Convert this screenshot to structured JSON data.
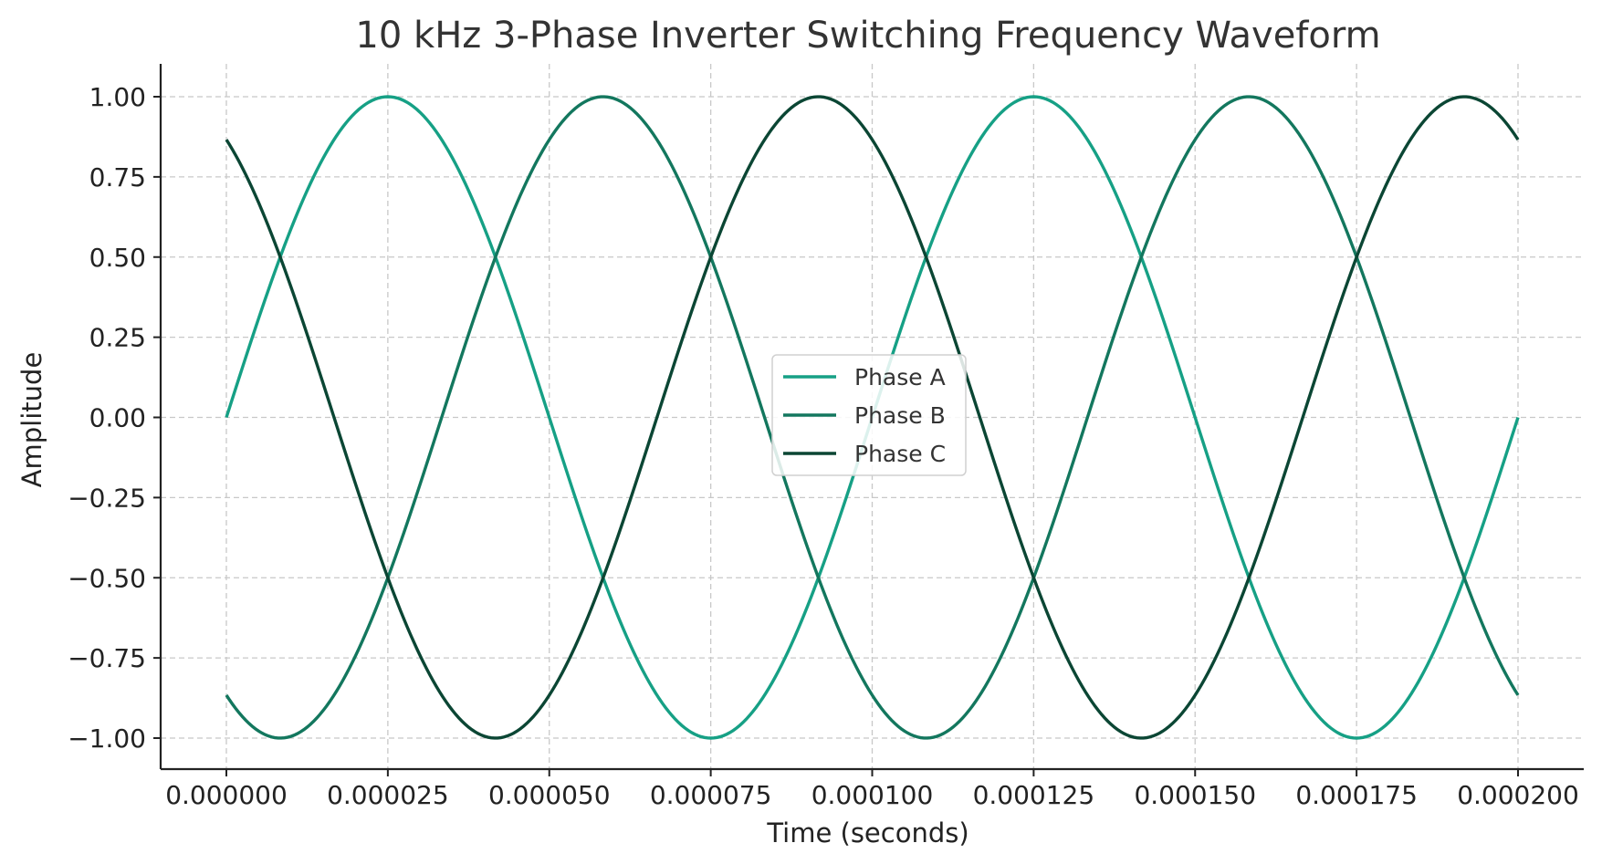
{
  "chart_data": {
    "type": "line",
    "title": "10 kHz 3-Phase Inverter Switching Frequency Waveform",
    "xlabel": "Time (seconds)",
    "ylabel": "Amplitude",
    "xlim": [
      0,
      0.0002
    ],
    "ylim": [
      -1.1,
      1.1
    ],
    "xticks": [
      0,
      2.5e-05,
      5e-05,
      7.5e-05,
      0.0001,
      0.000125,
      0.00015,
      0.000175,
      0.0002
    ],
    "xtick_labels": [
      "0.000000",
      "0.000025",
      "0.000050",
      "0.000075",
      "0.000100",
      "0.000125",
      "0.000150",
      "0.000175",
      "0.000200"
    ],
    "yticks": [
      1.0,
      0.75,
      0.5,
      0.25,
      0.0,
      -0.25,
      -0.5,
      -0.75,
      -1.0
    ],
    "ytick_labels": [
      "1.00",
      "0.75",
      "0.50",
      "0.25",
      "0.00",
      "−0.25",
      "−0.50",
      "−0.75",
      "−1.00"
    ],
    "grid": true,
    "legend_position": "center",
    "series": [
      {
        "name": "Phase A",
        "color": "#16a085",
        "x": [
          0,
          1.25e-05,
          2.5e-05,
          3.75e-05,
          5e-05,
          6.25e-05,
          7.5e-05,
          8.75e-05,
          0.0001,
          0.0001125,
          0.000125,
          0.0001375,
          0.00015,
          0.0001625,
          0.000175,
          0.0001875,
          0.0002
        ],
        "y": [
          0.0,
          0.707,
          1.0,
          0.707,
          0.0,
          -0.707,
          -1.0,
          -0.707,
          0.0,
          0.707,
          1.0,
          0.707,
          0.0,
          -0.707,
          -1.0,
          -0.707,
          0.0
        ]
      },
      {
        "name": "Phase B",
        "color": "#13775e",
        "x": [
          0,
          1.25e-05,
          2.5e-05,
          3.75e-05,
          5e-05,
          6.25e-05,
          7.5e-05,
          8.75e-05,
          0.0001,
          0.0001125,
          0.000125,
          0.0001375,
          0.00015,
          0.0001625,
          0.000175,
          0.0001875,
          0.0002
        ],
        "y": [
          -0.866,
          -0.966,
          -0.5,
          0.259,
          0.866,
          0.966,
          0.5,
          -0.259,
          -0.866,
          -0.966,
          -0.5,
          0.259,
          0.866,
          0.966,
          0.5,
          -0.259,
          -0.866
        ]
      },
      {
        "name": "Phase C",
        "color": "#0b4634",
        "x": [
          0,
          1.25e-05,
          2.5e-05,
          3.75e-05,
          5e-05,
          6.25e-05,
          7.5e-05,
          8.75e-05,
          0.0001,
          0.0001125,
          0.000125,
          0.0001375,
          0.00015,
          0.0001625,
          0.000175,
          0.0001875,
          0.0002
        ],
        "y": [
          0.866,
          0.259,
          -0.5,
          -0.966,
          -0.866,
          -0.259,
          0.5,
          0.966,
          0.866,
          0.259,
          -0.5,
          -0.966,
          -0.866,
          -0.259,
          0.5,
          0.966,
          0.866
        ]
      }
    ]
  }
}
